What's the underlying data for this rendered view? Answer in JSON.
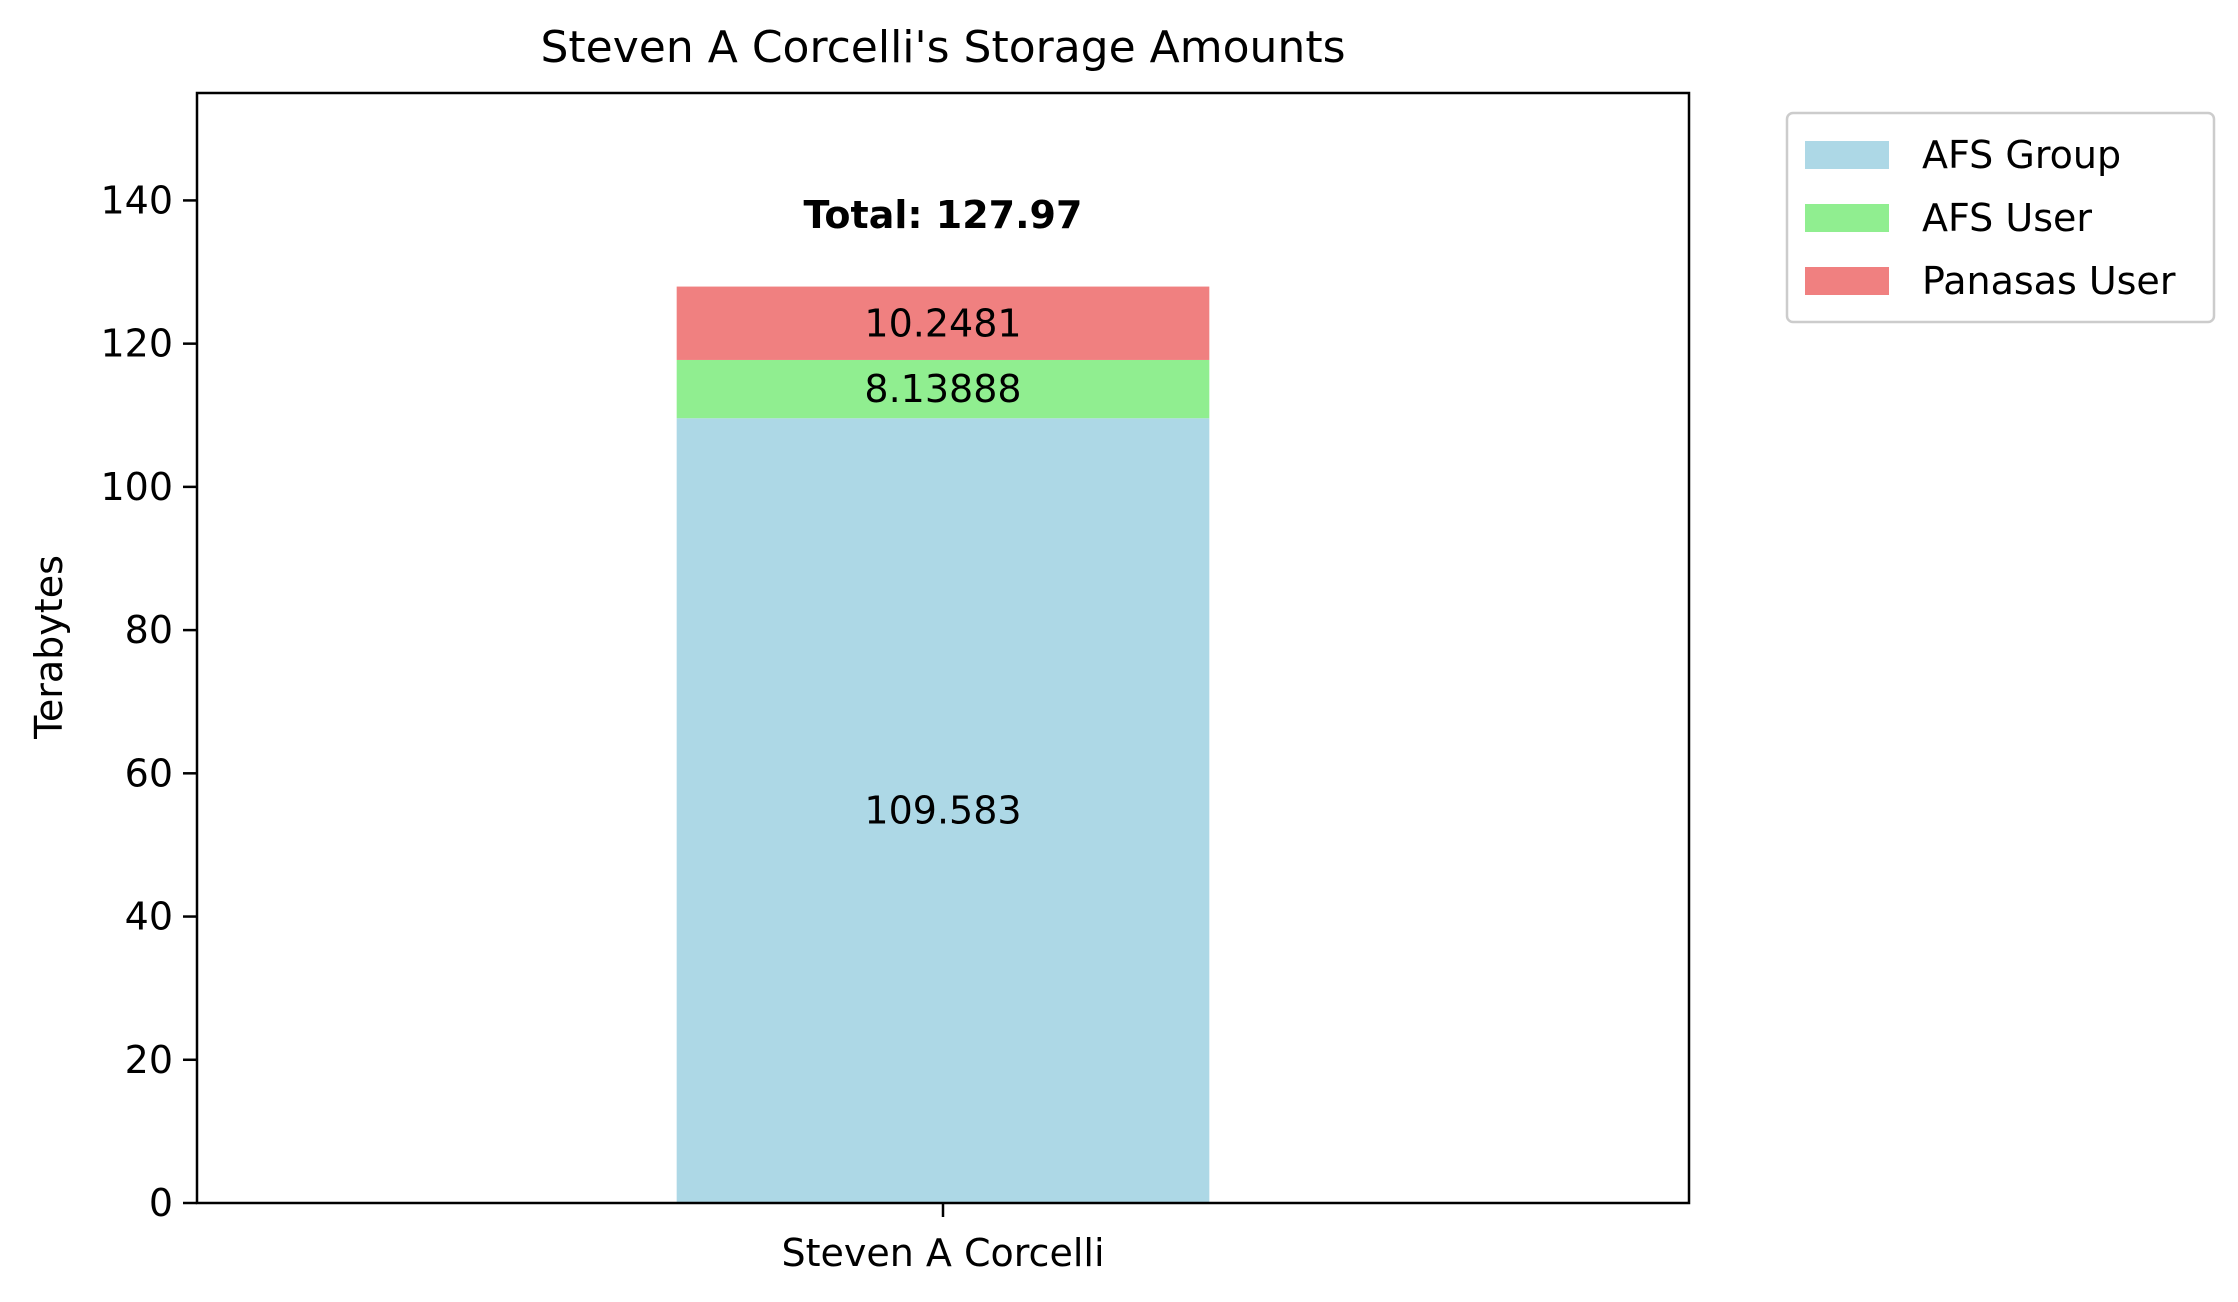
{
  "chart_data": {
    "type": "bar",
    "stacked": true,
    "title": "Steven A Corcelli's Storage Amounts",
    "xlabel": "",
    "ylabel": "Terabytes",
    "categories": [
      "Steven A Corcelli"
    ],
    "ylim": [
      0,
      155
    ],
    "yticks": [
      0,
      20,
      40,
      60,
      80,
      100,
      120,
      140
    ],
    "ytick_labels": [
      "0",
      "20",
      "40",
      "60",
      "80",
      "100",
      "120",
      "140"
    ],
    "grid": false,
    "legend_position": "outside-top-right",
    "series": [
      {
        "name": "AFS Group",
        "color": "#add8e6",
        "values": [
          109.583
        ],
        "label": "109.583"
      },
      {
        "name": "AFS User",
        "color": "#90ee90",
        "values": [
          8.13888
        ],
        "label": "8.13888"
      },
      {
        "name": "Panasas User",
        "color": "#f08080",
        "values": [
          10.2481
        ],
        "label": "10.2481"
      }
    ],
    "total_label": "Total: 127.97",
    "total_value": 127.97
  }
}
